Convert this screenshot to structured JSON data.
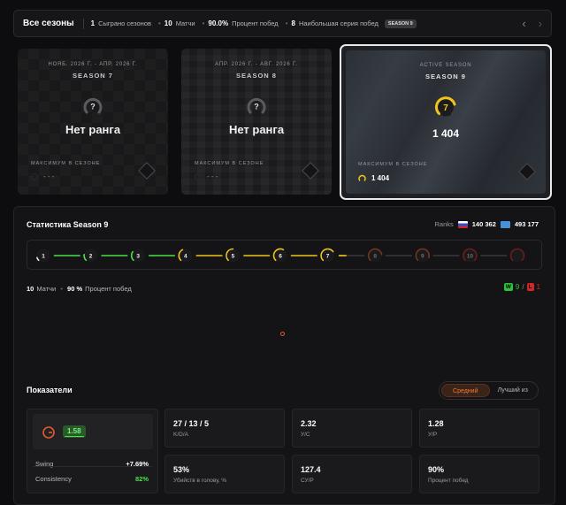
{
  "topbar": {
    "title": "Все сезоны",
    "stats": [
      {
        "value": "1",
        "label": "Сыграно сезонов"
      },
      {
        "value": "10",
        "label": "Матчи"
      },
      {
        "value": "90.0%",
        "label": "Процент побед"
      },
      {
        "value": "8",
        "label": "Наибольшая серия побед"
      }
    ],
    "badge": "SEASON 9",
    "prev_glyph": "‹",
    "next_glyph": "›"
  },
  "seasons": [
    {
      "date": "НОЯБ. 2026 Г. - АПР. 2026 Г.",
      "name": "SEASON 7",
      "rank_symbol": "?",
      "rank_text": "Нет ранга",
      "max_label": "МАКСИМУМ В СЕЗОНЕ",
      "max_value": "- - -"
    },
    {
      "date": "АПР. 2026 Г. - АВГ. 2026 Г.",
      "name": "SEASON 8",
      "rank_symbol": "?",
      "rank_text": "Нет ранга",
      "max_label": "МАКСИМУМ В СЕЗОНЕ",
      "max_value": "- - -"
    },
    {
      "date": "ACTIVE SEASON",
      "name": "SEASON 9",
      "rank_symbol": "7",
      "rank_text": "1 404",
      "max_label": "МАКСИМУМ В СЕЗОНЕ",
      "max_value": "1 404"
    }
  ],
  "stats": {
    "title": "Статистика Season 9",
    "ranks_label": "Ranks",
    "country_rank": "140 362",
    "world_rank": "493 177",
    "levels": [
      "1",
      "2",
      "3",
      "4",
      "5",
      "6",
      "7",
      "8",
      "9",
      "10",
      ""
    ],
    "current_level_fraction": 0.3,
    "matches_value": "10",
    "matches_label": "Матчи",
    "winrate_value": "90 %",
    "winrate_label": "Процент побед",
    "wins_badge": "W",
    "wins": "9",
    "losses_badge": "L",
    "losses": "1",
    "separator": "/"
  },
  "performance": {
    "title": "Показатели",
    "toggle": [
      "Средний",
      "Лучший из"
    ],
    "rating": "1.58",
    "swing_label": "Swing",
    "swing_value": "+7.69%",
    "consistency_label": "Consistency",
    "consistency_value": "82%",
    "cards": [
      {
        "value": "27 / 13 / 5",
        "label": "K/D/A"
      },
      {
        "value": "2.32",
        "label": "У/С"
      },
      {
        "value": "1.28",
        "label": "У/Р"
      },
      {
        "value": "53%",
        "label": "Убийств в голову, %"
      },
      {
        "value": "127.4",
        "label": "СУ/Р"
      },
      {
        "value": "90%",
        "label": "Процент побед"
      }
    ]
  },
  "colors": {
    "green": "#4ae04a",
    "yellow": "#f0c419",
    "orange": "#e35a2c",
    "red": "#d32626"
  }
}
